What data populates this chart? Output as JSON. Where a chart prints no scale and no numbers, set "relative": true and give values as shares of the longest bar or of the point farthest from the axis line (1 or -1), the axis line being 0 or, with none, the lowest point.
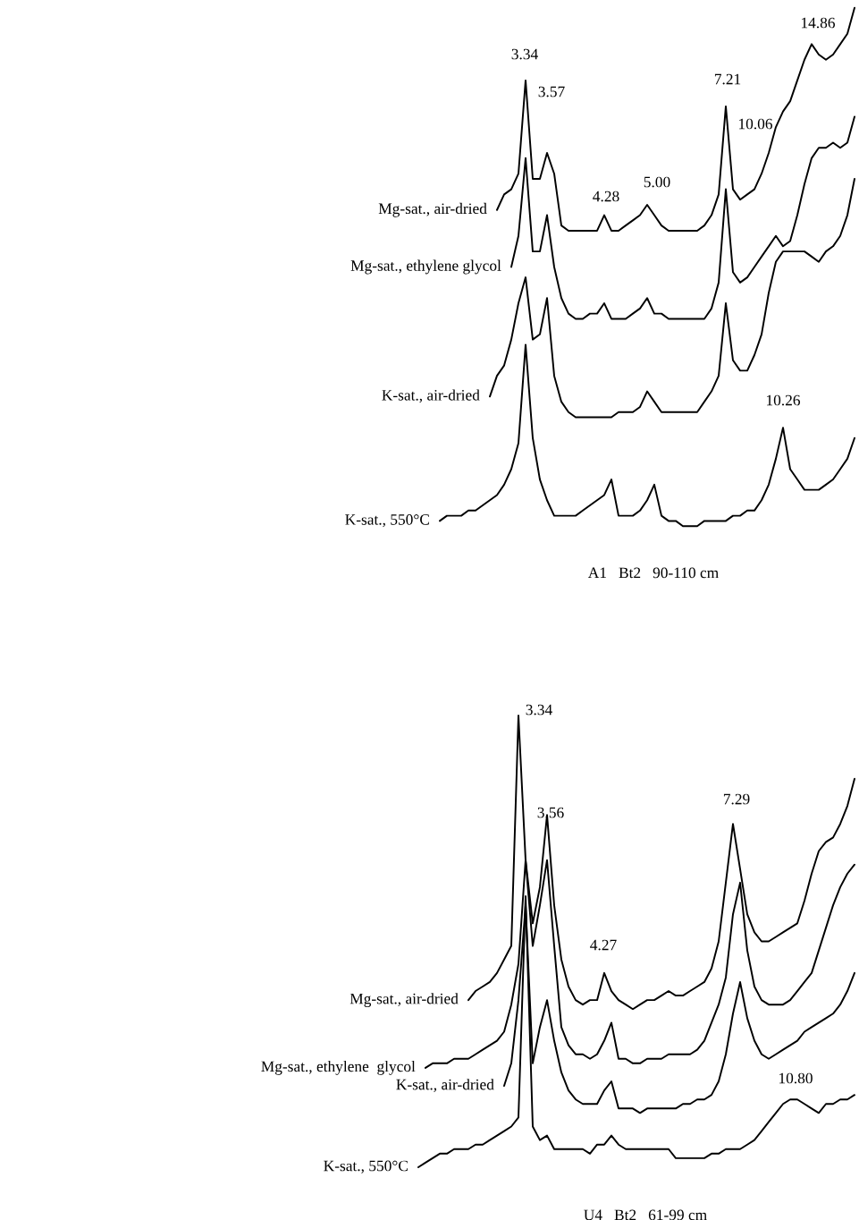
{
  "chart_data": [
    {
      "type": "line",
      "relative": true,
      "tick_labels": false,
      "xlabel": "A1   Bt2   90-110 cm",
      "categories": [
        null,
        null,
        null,
        null,
        null,
        null,
        null,
        null,
        null,
        null,
        null,
        null,
        null,
        null,
        null,
        null,
        null,
        null,
        null,
        null,
        null,
        null,
        null,
        null,
        null,
        null,
        null,
        null,
        null,
        null,
        null,
        null,
        null,
        null,
        null,
        null,
        null,
        null,
        null,
        null,
        null,
        null,
        null,
        null,
        null,
        null,
        null,
        null,
        null,
        null,
        null,
        null,
        null,
        null,
        null,
        null,
        null,
        null,
        null,
        null,
        null,
        null
      ],
      "annotations": [
        "3.34",
        "3.57",
        "4.28",
        "5.00",
        "7.21",
        "10.06",
        "14.86",
        "10.26"
      ],
      "series": [
        {
          "name": "Mg-sat., air-dried",
          "color": "#000000",
          "values": [
            null,
            null,
            null,
            null,
            null,
            null,
            null,
            null,
            null,
            null,
            null,
            0.61,
            0.64,
            0.65,
            0.68,
            0.86,
            0.67,
            0.67,
            0.72,
            0.68,
            0.58,
            0.57,
            0.57,
            0.57,
            0.57,
            0.57,
            0.6,
            0.57,
            0.57,
            0.58,
            0.59,
            0.6,
            0.62,
            0.6,
            0.58,
            0.57,
            0.57,
            0.57,
            0.57,
            0.57,
            0.58,
            0.6,
            0.64,
            0.81,
            0.65,
            0.63,
            0.64,
            0.65,
            0.68,
            0.72,
            0.77,
            0.8,
            0.82,
            0.86,
            0.9,
            0.93,
            0.91,
            0.9,
            0.91,
            0.93,
            0.95,
            1.0
          ]
        },
        {
          "name": "Mg-sat., ethylene glycol",
          "color": "#000000",
          "values": [
            null,
            null,
            null,
            null,
            null,
            null,
            null,
            null,
            null,
            null,
            null,
            null,
            null,
            0.5,
            0.56,
            0.71,
            0.53,
            0.53,
            0.6,
            0.5,
            0.44,
            0.41,
            0.4,
            0.4,
            0.41,
            0.41,
            0.43,
            0.4,
            0.4,
            0.4,
            0.41,
            0.42,
            0.44,
            0.41,
            0.41,
            0.4,
            0.4,
            0.4,
            0.4,
            0.4,
            0.4,
            0.42,
            0.47,
            0.65,
            0.49,
            0.47,
            0.48,
            0.5,
            0.52,
            0.54,
            0.56,
            0.54,
            0.55,
            0.6,
            0.66,
            0.71,
            0.73,
            0.73,
            0.74,
            0.73,
            0.74,
            0.79
          ]
        },
        {
          "name": "K-sat., air-dried",
          "color": "#000000",
          "values": [
            null,
            null,
            null,
            null,
            null,
            null,
            null,
            null,
            null,
            null,
            0.25,
            0.29,
            0.31,
            0.36,
            0.43,
            0.48,
            0.36,
            0.37,
            0.44,
            0.29,
            0.24,
            0.22,
            0.21,
            0.21,
            0.21,
            0.21,
            0.21,
            0.21,
            0.22,
            0.22,
            0.22,
            0.23,
            0.26,
            0.24,
            0.22,
            0.22,
            0.22,
            0.22,
            0.22,
            0.22,
            0.24,
            0.26,
            0.29,
            0.43,
            0.32,
            0.3,
            0.3,
            0.33,
            0.37,
            0.45,
            0.51,
            0.53,
            0.53,
            0.53,
            0.53,
            0.52,
            0.51,
            0.53,
            0.54,
            0.56,
            0.6,
            0.67
          ]
        },
        {
          "name": "K-sat., 550°C",
          "color": "#000000",
          "values": [
            null,
            null,
            null,
            0.01,
            0.02,
            0.02,
            0.02,
            0.03,
            0.03,
            0.04,
            0.05,
            0.06,
            0.08,
            0.11,
            0.16,
            0.35,
            0.17,
            0.09,
            0.05,
            0.02,
            0.02,
            0.02,
            0.02,
            0.03,
            0.04,
            0.05,
            0.06,
            0.09,
            0.02,
            0.02,
            0.02,
            0.03,
            0.05,
            0.08,
            0.02,
            0.01,
            0.01,
            0.0,
            0.0,
            0.0,
            0.01,
            0.01,
            0.01,
            0.01,
            0.02,
            0.02,
            0.03,
            0.03,
            0.05,
            0.08,
            0.13,
            0.19,
            0.11,
            0.09,
            0.07,
            0.07,
            0.07,
            0.08,
            0.09,
            0.11,
            0.13,
            0.17
          ]
        }
      ]
    },
    {
      "type": "line",
      "relative": true,
      "tick_labels": false,
      "xlabel": "U4   Bt2   61-99 cm",
      "categories": [
        null,
        null,
        null,
        null,
        null,
        null,
        null,
        null,
        null,
        null,
        null,
        null,
        null,
        null,
        null,
        null,
        null,
        null,
        null,
        null,
        null,
        null,
        null,
        null,
        null,
        null,
        null,
        null,
        null,
        null,
        null,
        null,
        null,
        null,
        null,
        null,
        null,
        null,
        null,
        null,
        null,
        null,
        null,
        null,
        null,
        null,
        null,
        null,
        null,
        null,
        null,
        null,
        null,
        null,
        null,
        null,
        null,
        null,
        null,
        null,
        null,
        null
      ],
      "annotations": [
        "3.34",
        "3.56",
        "4.27",
        "7.29",
        "10.80"
      ],
      "series": [
        {
          "name": "Mg-sat., air-dried",
          "color": "#000000",
          "values": [
            null,
            null,
            null,
            null,
            null,
            null,
            null,
            0.37,
            0.39,
            0.4,
            0.41,
            0.43,
            0.46,
            0.49,
            1.0,
            0.68,
            0.54,
            0.62,
            0.78,
            0.58,
            0.46,
            0.4,
            0.37,
            0.36,
            0.37,
            0.37,
            0.43,
            0.39,
            0.37,
            0.36,
            0.35,
            0.36,
            0.37,
            0.37,
            0.38,
            0.39,
            0.38,
            0.38,
            0.39,
            0.4,
            0.41,
            0.44,
            0.5,
            0.63,
            0.76,
            0.66,
            0.56,
            0.52,
            0.5,
            0.5,
            0.51,
            0.52,
            0.53,
            0.54,
            0.59,
            0.65,
            0.7,
            0.72,
            0.73,
            0.76,
            0.8,
            0.86
          ]
        },
        {
          "name": "Mg-sat., ethylene  glycol",
          "color": "#000000",
          "values": [
            null,
            0.22,
            0.23,
            0.23,
            0.23,
            0.24,
            0.24,
            0.24,
            0.25,
            0.26,
            0.27,
            0.28,
            0.3,
            0.36,
            0.45,
            0.68,
            0.49,
            0.58,
            0.68,
            0.49,
            0.31,
            0.27,
            0.25,
            0.25,
            0.24,
            0.25,
            0.28,
            0.32,
            0.24,
            0.24,
            0.23,
            0.23,
            0.24,
            0.24,
            0.24,
            0.25,
            0.25,
            0.25,
            0.25,
            0.26,
            0.28,
            0.32,
            0.36,
            0.42,
            0.56,
            0.63,
            0.48,
            0.4,
            0.37,
            0.36,
            0.36,
            0.36,
            0.37,
            0.39,
            0.41,
            0.43,
            0.48,
            0.53,
            0.58,
            0.62,
            0.65,
            0.67
          ]
        },
        {
          "name": "K-sat., air-dried",
          "color": "#000000",
          "values": [
            null,
            null,
            null,
            null,
            null,
            null,
            null,
            null,
            null,
            null,
            null,
            null,
            0.18,
            0.23,
            0.37,
            0.58,
            0.23,
            0.31,
            0.37,
            0.28,
            0.21,
            0.17,
            0.15,
            0.14,
            0.14,
            0.14,
            0.17,
            0.19,
            0.13,
            0.13,
            0.13,
            0.12,
            0.13,
            0.13,
            0.13,
            0.13,
            0.13,
            0.14,
            0.14,
            0.15,
            0.15,
            0.16,
            0.19,
            0.25,
            0.34,
            0.41,
            0.33,
            0.28,
            0.25,
            0.24,
            0.25,
            0.26,
            0.27,
            0.28,
            0.3,
            0.31,
            0.32,
            0.33,
            0.34,
            0.36,
            0.39,
            0.43
          ]
        },
        {
          "name": "K-sat., 550°C",
          "color": "#000000",
          "values": [
            0.0,
            0.01,
            0.02,
            0.03,
            0.03,
            0.04,
            0.04,
            0.04,
            0.05,
            0.05,
            0.06,
            0.07,
            0.08,
            0.09,
            0.11,
            0.6,
            0.09,
            0.06,
            0.07,
            0.04,
            0.04,
            0.04,
            0.04,
            0.04,
            0.03,
            0.05,
            0.05,
            0.07,
            0.05,
            0.04,
            0.04,
            0.04,
            0.04,
            0.04,
            0.04,
            0.04,
            0.02,
            0.02,
            0.02,
            0.02,
            0.02,
            0.03,
            0.03,
            0.04,
            0.04,
            0.04,
            0.05,
            0.06,
            0.08,
            0.1,
            0.12,
            0.14,
            0.15,
            0.15,
            0.14,
            0.13,
            0.12,
            0.14,
            0.14,
            0.15,
            0.15,
            0.16
          ]
        }
      ]
    }
  ]
}
